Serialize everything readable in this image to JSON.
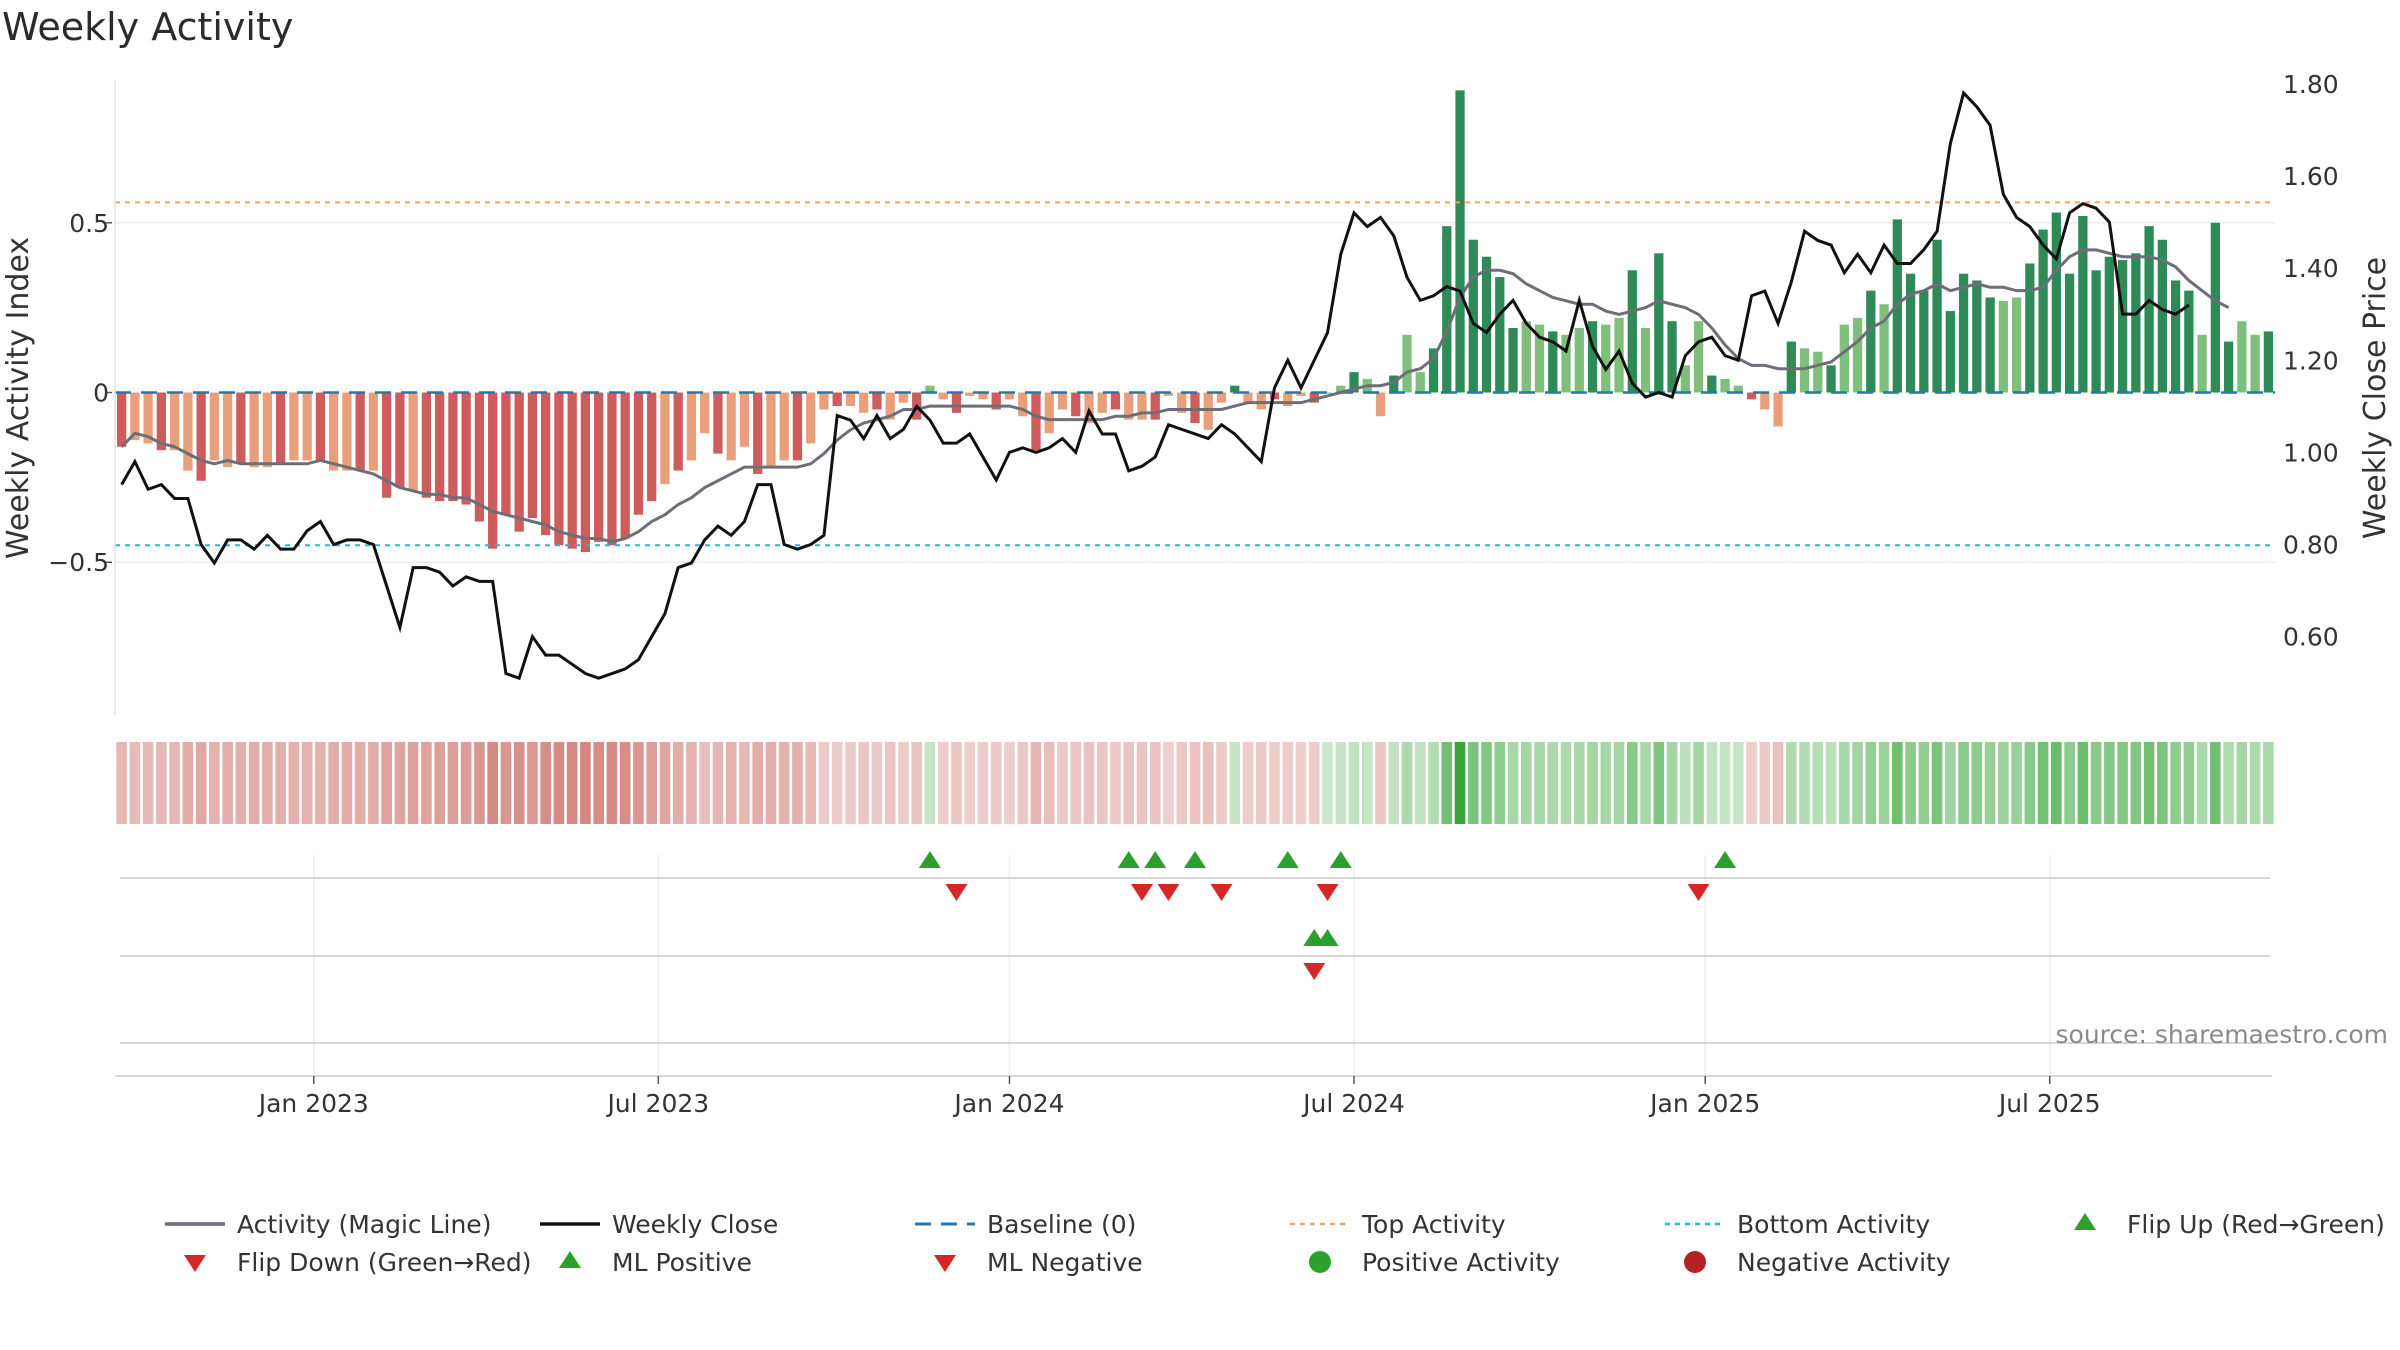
{
  "title": "Weekly Activity",
  "source": "source: sharemaestro.com",
  "colors": {
    "pos_strong": "#2e8b57",
    "pos_light": "#7fbf7b",
    "neg_strong": "#cd5c5c",
    "neg_light": "#e8a07c",
    "magic_line": "#6e6e78",
    "close_line": "#111111",
    "baseline": "#1f77b4",
    "top": "#f4a460",
    "bottom": "#17becf",
    "flip_up": "#2ca02c",
    "flip_down": "#d62728",
    "ml_pos": "#2ca02c",
    "ml_neg": "#d62728",
    "pos_dot": "#2ca02c",
    "neg_dot": "#b22222"
  },
  "chart_data": {
    "type": "bar",
    "title": "Weekly Activity",
    "ylabel": "Weekly Activity Index",
    "y2label": "Weekly Close Price",
    "ylim": [
      -0.95,
      0.95
    ],
    "y2lim": [
      0.43,
      1.83
    ],
    "yticks": [
      -0.5,
      0,
      0.5
    ],
    "ytick_labels": [
      "−0.5",
      "0",
      "0.5"
    ],
    "y2ticks": [
      0.6,
      0.8,
      1.0,
      1.2,
      1.4,
      1.6,
      1.8
    ],
    "y2tick_labels": [
      "0.60",
      "0.80",
      "1.00",
      "1.20",
      "1.40",
      "1.60",
      "1.80"
    ],
    "xticks": [
      {
        "label": "Jan 2023",
        "week": 15
      },
      {
        "label": "Jul 2023",
        "week": 41
      },
      {
        "label": "Jan 2024",
        "week": 67.5
      },
      {
        "label": "Jul 2024",
        "week": 93.5
      },
      {
        "label": "Jan 2025",
        "week": 120
      },
      {
        "label": "Jul 2025",
        "week": 146
      }
    ],
    "top_activity": 0.56,
    "bottom_activity": -0.45,
    "activity": [
      -0.16,
      -0.14,
      -0.15,
      -0.17,
      -0.17,
      -0.23,
      -0.26,
      -0.2,
      -0.22,
      -0.21,
      -0.22,
      -0.22,
      -0.21,
      -0.2,
      -0.2,
      -0.2,
      -0.23,
      -0.23,
      -0.23,
      -0.23,
      -0.31,
      -0.28,
      -0.29,
      -0.31,
      -0.32,
      -0.32,
      -0.33,
      -0.38,
      -0.46,
      -0.36,
      -0.41,
      -0.37,
      -0.42,
      -0.45,
      -0.46,
      -0.47,
      -0.44,
      -0.45,
      -0.43,
      -0.36,
      -0.32,
      -0.27,
      -0.23,
      -0.2,
      -0.12,
      -0.18,
      -0.2,
      -0.16,
      -0.24,
      -0.22,
      -0.2,
      -0.2,
      -0.15,
      -0.05,
      -0.04,
      -0.04,
      -0.06,
      -0.05,
      -0.08,
      -0.03,
      -0.08,
      0.02,
      -0.02,
      -0.06,
      -0.01,
      -0.02,
      -0.05,
      -0.02,
      -0.07,
      -0.17,
      -0.12,
      -0.05,
      -0.07,
      -0.09,
      -0.06,
      -0.05,
      -0.08,
      -0.08,
      -0.08,
      -0.01,
      -0.06,
      -0.09,
      -0.11,
      -0.03,
      0.02,
      -0.03,
      -0.05,
      -0.02,
      -0.04,
      -0.01,
      -0.03,
      0.0,
      0.02,
      0.06,
      0.04,
      -0.07,
      0.05,
      0.17,
      0.06,
      0.13,
      0.49,
      0.89,
      0.45,
      0.4,
      0.34,
      0.19,
      0.21,
      0.2,
      0.18,
      0.17,
      0.19,
      0.21,
      0.2,
      0.22,
      0.36,
      0.19,
      0.41,
      0.21,
      0.08,
      0.21,
      0.05,
      0.04,
      0.02,
      -0.02,
      -0.05,
      -0.1,
      0.15,
      0.13,
      0.12,
      0.08,
      0.2,
      0.22,
      0.3,
      0.26,
      0.51,
      0.35,
      0.3,
      0.45,
      0.24,
      0.35,
      0.33,
      0.28,
      0.27,
      0.28,
      0.38,
      0.48,
      0.53,
      0.35,
      0.52,
      0.36,
      0.4,
      0.39,
      0.41,
      0.49,
      0.45,
      0.33,
      0.3,
      0.17,
      0.5,
      0.15,
      0.21,
      0.17,
      0.18
    ],
    "magic_line": [
      -0.16,
      -0.12,
      -0.13,
      -0.15,
      -0.16,
      -0.18,
      -0.2,
      -0.21,
      -0.2,
      -0.21,
      -0.21,
      -0.21,
      -0.21,
      -0.21,
      -0.21,
      -0.2,
      -0.21,
      -0.22,
      -0.23,
      -0.24,
      -0.26,
      -0.28,
      -0.29,
      -0.3,
      -0.3,
      -0.31,
      -0.31,
      -0.33,
      -0.35,
      -0.36,
      -0.37,
      -0.38,
      -0.39,
      -0.41,
      -0.42,
      -0.43,
      -0.43,
      -0.44,
      -0.43,
      -0.41,
      -0.38,
      -0.36,
      -0.33,
      -0.31,
      -0.28,
      -0.26,
      -0.24,
      -0.22,
      -0.22,
      -0.22,
      -0.22,
      -0.22,
      -0.21,
      -0.18,
      -0.14,
      -0.11,
      -0.09,
      -0.08,
      -0.07,
      -0.05,
      -0.05,
      -0.04,
      -0.04,
      -0.04,
      -0.04,
      -0.04,
      -0.04,
      -0.04,
      -0.05,
      -0.07,
      -0.08,
      -0.08,
      -0.08,
      -0.08,
      -0.08,
      -0.07,
      -0.07,
      -0.06,
      -0.06,
      -0.05,
      -0.05,
      -0.05,
      -0.05,
      -0.05,
      -0.04,
      -0.03,
      -0.03,
      -0.03,
      -0.03,
      -0.03,
      -0.02,
      -0.01,
      0.0,
      0.01,
      0.02,
      0.02,
      0.03,
      0.06,
      0.07,
      0.1,
      0.18,
      0.28,
      0.34,
      0.36,
      0.36,
      0.35,
      0.32,
      0.3,
      0.28,
      0.27,
      0.26,
      0.26,
      0.24,
      0.23,
      0.24,
      0.25,
      0.27,
      0.26,
      0.25,
      0.23,
      0.19,
      0.14,
      0.1,
      0.08,
      0.08,
      0.07,
      0.07,
      0.07,
      0.08,
      0.09,
      0.12,
      0.15,
      0.19,
      0.21,
      0.26,
      0.29,
      0.3,
      0.32,
      0.3,
      0.31,
      0.32,
      0.31,
      0.31,
      0.3,
      0.3,
      0.31,
      0.36,
      0.4,
      0.42,
      0.42,
      0.41,
      0.4,
      0.4,
      0.4,
      0.39,
      0.37,
      0.33,
      0.3,
      0.27,
      0.25
    ],
    "weekly_close": [
      0.93,
      0.98,
      0.92,
      0.93,
      0.9,
      0.9,
      0.8,
      0.76,
      0.81,
      0.81,
      0.79,
      0.82,
      0.79,
      0.79,
      0.83,
      0.85,
      0.8,
      0.81,
      0.81,
      0.8,
      0.71,
      0.62,
      0.75,
      0.75,
      0.74,
      0.71,
      0.73,
      0.72,
      0.72,
      0.52,
      0.51,
      0.6,
      0.56,
      0.56,
      0.54,
      0.52,
      0.51,
      0.52,
      0.53,
      0.55,
      0.6,
      0.65,
      0.75,
      0.76,
      0.81,
      0.84,
      0.82,
      0.85,
      0.93,
      0.93,
      0.8,
      0.79,
      0.8,
      0.82,
      1.08,
      1.07,
      1.03,
      1.08,
      1.03,
      1.05,
      1.1,
      1.07,
      1.02,
      1.02,
      1.04,
      0.99,
      0.94,
      1.0,
      1.01,
      1.0,
      1.01,
      1.03,
      1.0,
      1.09,
      1.04,
      1.04,
      0.96,
      0.97,
      0.99,
      1.06,
      1.05,
      1.04,
      1.03,
      1.06,
      1.04,
      1.01,
      0.98,
      1.14,
      1.2,
      1.14,
      1.2,
      1.26,
      1.43,
      1.52,
      1.49,
      1.51,
      1.47,
      1.38,
      1.33,
      1.34,
      1.36,
      1.35,
      1.28,
      1.26,
      1.3,
      1.33,
      1.28,
      1.25,
      1.24,
      1.22,
      1.33,
      1.23,
      1.18,
      1.22,
      1.15,
      1.12,
      1.13,
      1.12,
      1.21,
      1.24,
      1.25,
      1.21,
      1.2,
      1.34,
      1.35,
      1.28,
      1.37,
      1.48,
      1.46,
      1.45,
      1.39,
      1.43,
      1.39,
      1.45,
      1.41,
      1.41,
      1.44,
      1.48,
      1.67,
      1.78,
      1.75,
      1.71,
      1.56,
      1.51,
      1.49,
      1.45,
      1.42,
      1.52,
      1.54,
      1.53,
      1.5,
      1.3,
      1.3,
      1.33,
      1.31,
      1.3,
      1.32
    ],
    "ml_positive_weeks": [
      90,
      91
    ],
    "ml_negative_weeks": [
      90
    ],
    "flip_up_weeks": [
      61,
      76,
      78,
      81,
      88,
      92,
      121
    ],
    "flip_down_weeks": [
      63,
      77,
      79,
      83,
      91,
      119
    ],
    "legend": [
      {
        "label": "Activity (Magic Line)",
        "kind": "line",
        "color": "#6e6e78"
      },
      {
        "label": "Weekly Close",
        "kind": "line",
        "color": "#111111"
      },
      {
        "label": "Baseline (0)",
        "kind": "dash",
        "color": "#1f77b4"
      },
      {
        "label": "Top Activity",
        "kind": "dot",
        "color": "#f4a460"
      },
      {
        "label": "Bottom Activity",
        "kind": "dot",
        "color": "#17becf"
      },
      {
        "label": "Flip Up (Red→Green)",
        "kind": "tri-up",
        "color": "#2ca02c"
      },
      {
        "label": "Flip Down (Green→Red)",
        "kind": "tri-down",
        "color": "#d62728"
      },
      {
        "label": "ML Positive",
        "kind": "tri-up",
        "color": "#2ca02c"
      },
      {
        "label": "ML Negative",
        "kind": "tri-down",
        "color": "#d62728"
      },
      {
        "label": "Positive Activity",
        "kind": "circle",
        "color": "#2ca02c"
      },
      {
        "label": "Negative Activity",
        "kind": "circle",
        "color": "#b22222"
      }
    ]
  }
}
